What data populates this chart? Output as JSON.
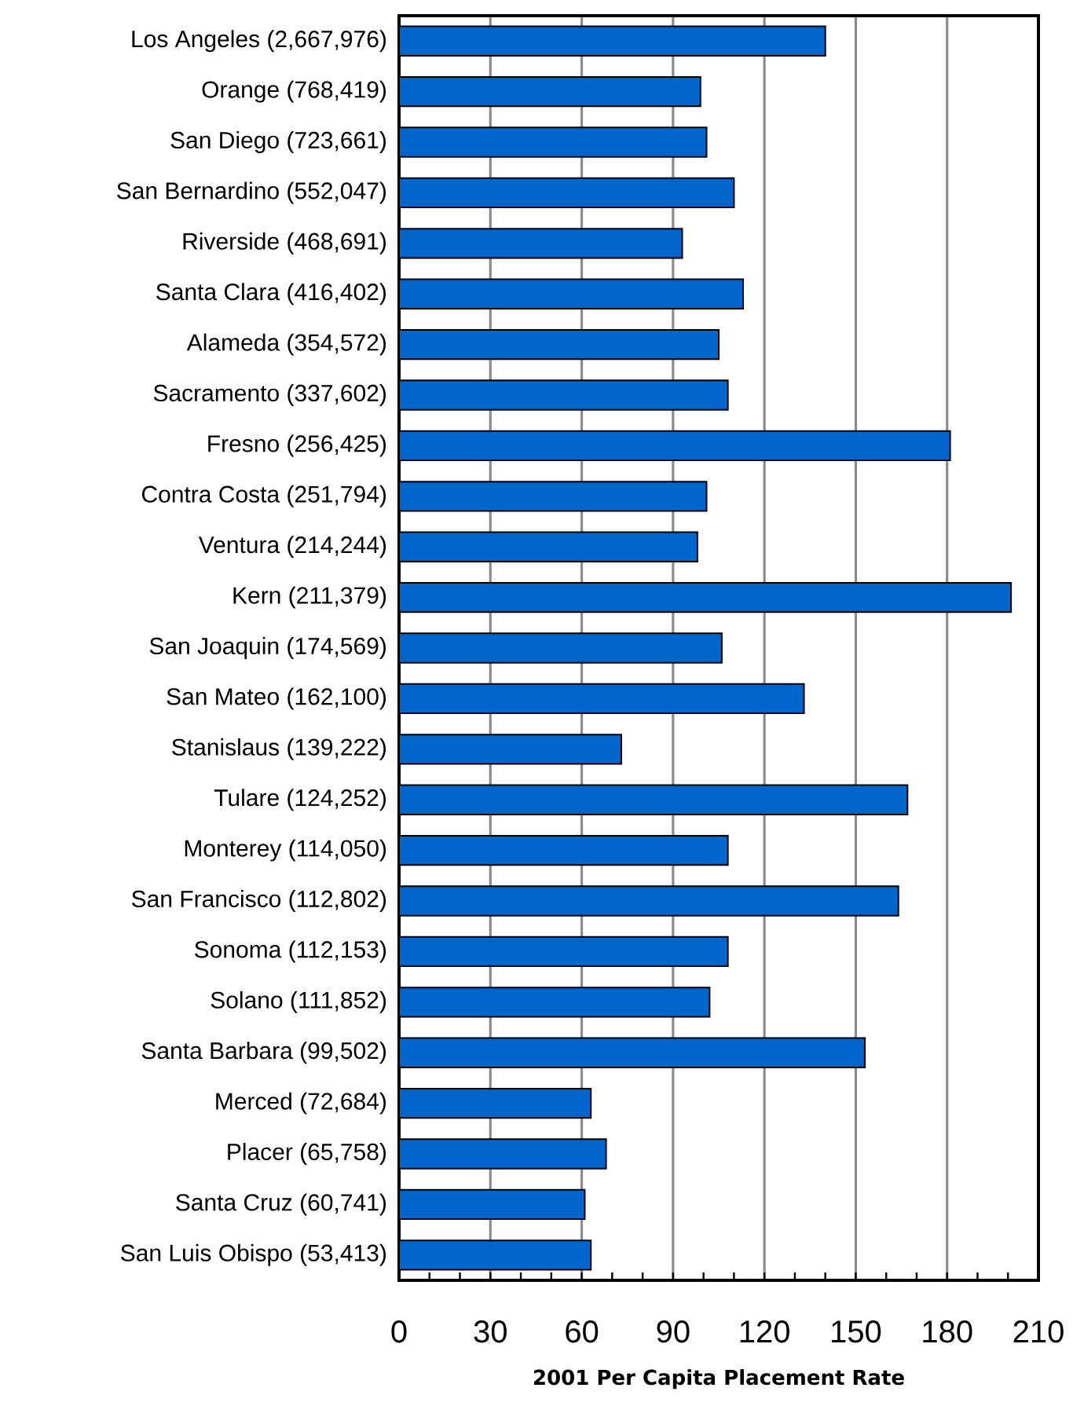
{
  "chart_data": {
    "type": "bar",
    "orientation": "horizontal",
    "xlabel": "2001 Per Capita Placement Rate",
    "categories": [
      "Los Angeles (2,667,976)",
      "Orange (768,419)",
      "San Diego (723,661)",
      "San Bernardino (552,047)",
      "Riverside (468,691)",
      "Santa Clara (416,402)",
      "Alameda (354,572)",
      "Sacramento (337,602)",
      "Fresno (256,425)",
      "Contra Costa (251,794)",
      "Ventura (214,244)",
      "Kern (211,379)",
      "San Joaquin (174,569)",
      "San Mateo (162,100)",
      "Stanislaus (139,222)",
      "Tulare (124,252)",
      "Monterey (114,050)",
      "San Francisco (112,802)",
      "Sonoma (112,153)",
      "Solano (111,852)",
      "Santa Barbara (99,502)",
      "Merced (72,684)",
      "Placer (65,758)",
      "Santa Cruz (60,741)",
      "San Luis Obispo (53,413)"
    ],
    "values": [
      140,
      99,
      101,
      110,
      93,
      113,
      105,
      108,
      181,
      101,
      98,
      201,
      106,
      133,
      73,
      167,
      108,
      164,
      108,
      102,
      153,
      63,
      68,
      61,
      63
    ],
    "color": "#0066cc",
    "xlim": [
      0,
      210
    ],
    "xticks": [
      0,
      30,
      60,
      90,
      120,
      150,
      180,
      210
    ],
    "grid": "x"
  }
}
